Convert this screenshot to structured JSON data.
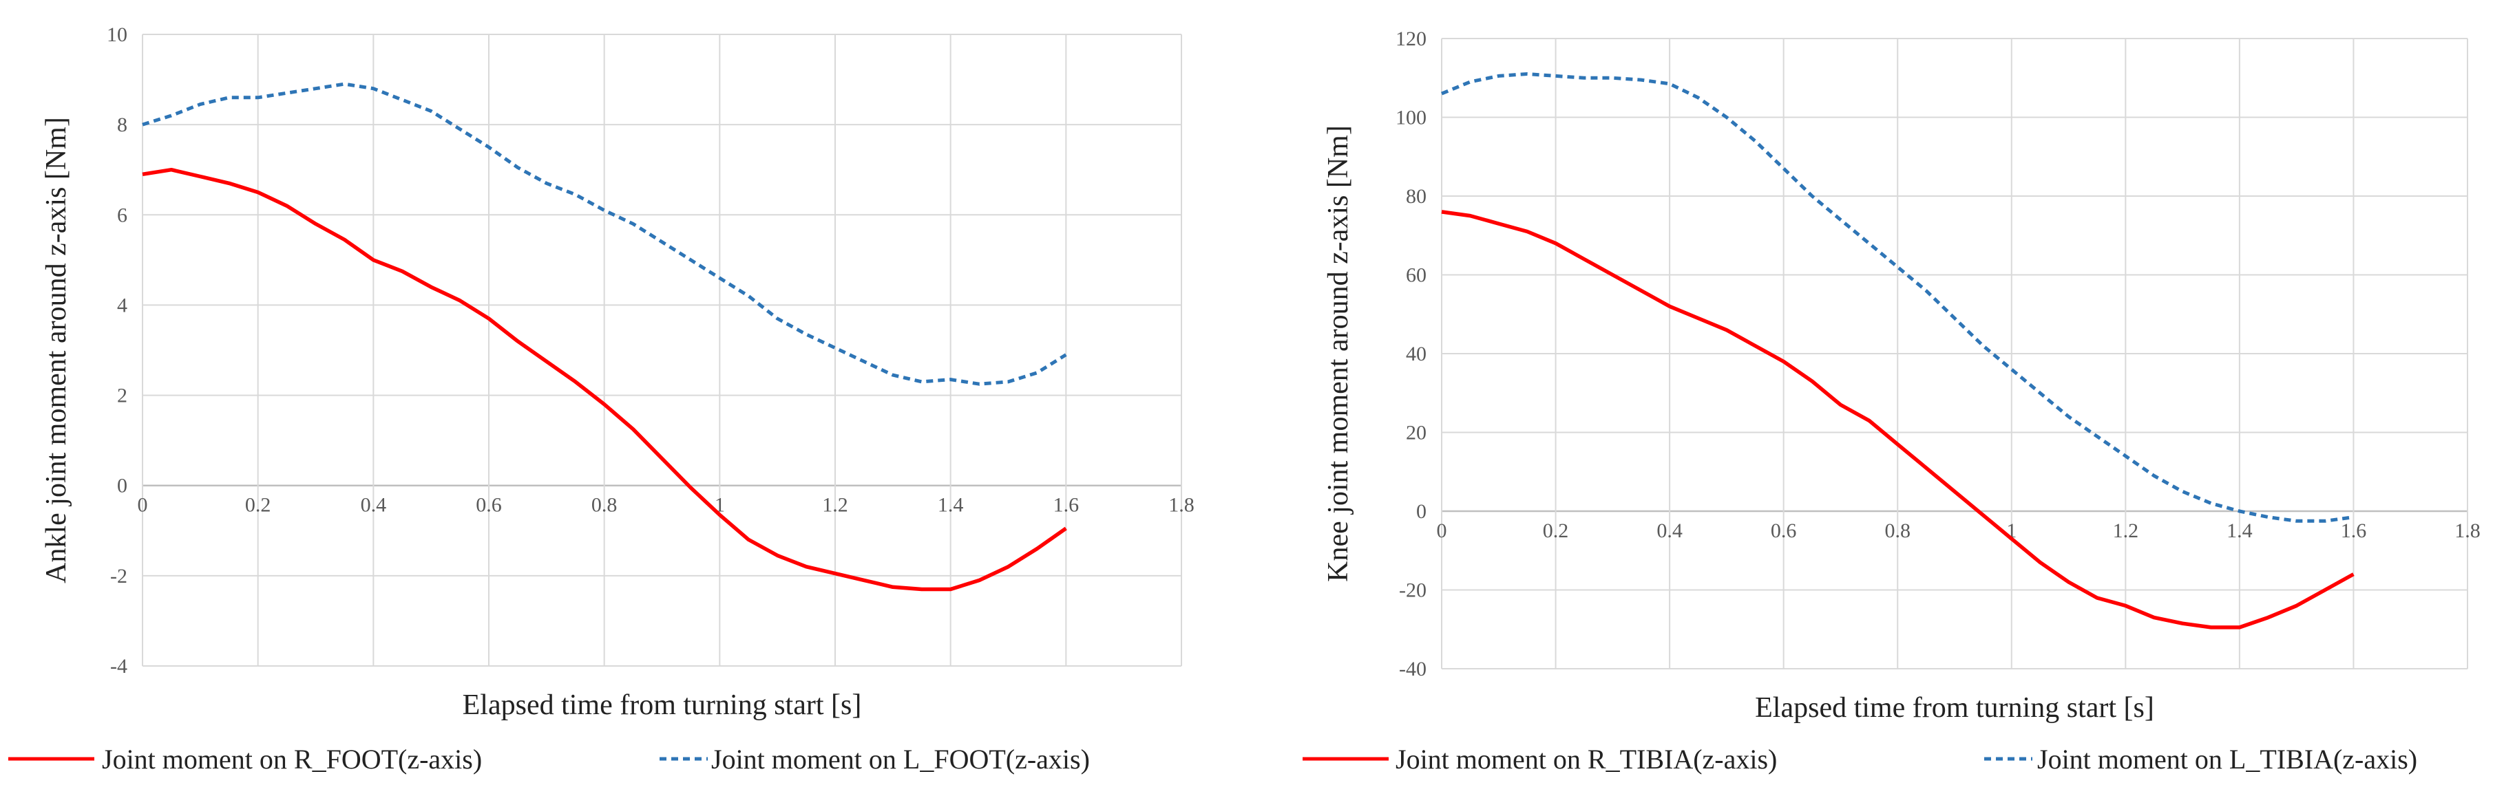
{
  "colors": {
    "solid": "#ff0000",
    "dashed": "#2e75b6",
    "grid": "#d9d9d9",
    "axis": "#bfbfbf"
  },
  "chart_data": [
    {
      "type": "line",
      "xlabel": "Elapsed time from turning start [s]",
      "ylabel": "Ankle joint moment around z-axis [Nm]",
      "xlim": [
        0,
        1.8
      ],
      "ylim": [
        -4,
        10
      ],
      "xticks": [
        "0",
        "0.2",
        "0.4",
        "0.6",
        "0.8",
        "1",
        "1.2",
        "1.4",
        "1.6",
        "1.8"
      ],
      "yticks": [
        "-4",
        "-2",
        "0",
        "2",
        "4",
        "6",
        "8",
        "10"
      ],
      "grid": true,
      "legend_position": "bottom",
      "series": [
        {
          "name": "Joint moment on R_FOOT(z-axis)",
          "style": "solid",
          "color": "#ff0000",
          "x": [
            0,
            0.05,
            0.1,
            0.15,
            0.2,
            0.25,
            0.3,
            0.35,
            0.4,
            0.45,
            0.5,
            0.55,
            0.6,
            0.65,
            0.7,
            0.75,
            0.8,
            0.85,
            0.9,
            0.95,
            1.0,
            1.05,
            1.1,
            1.15,
            1.2,
            1.25,
            1.3,
            1.35,
            1.4,
            1.45,
            1.5,
            1.55,
            1.6
          ],
          "y": [
            6.9,
            7.0,
            6.85,
            6.7,
            6.5,
            6.2,
            5.8,
            5.45,
            5.0,
            4.75,
            4.4,
            4.1,
            3.7,
            3.2,
            2.75,
            2.3,
            1.8,
            1.25,
            0.6,
            -0.05,
            -0.65,
            -1.2,
            -1.55,
            -1.8,
            -1.95,
            -2.1,
            -2.25,
            -2.3,
            -2.3,
            -2.1,
            -1.8,
            -1.4,
            -0.95
          ]
        },
        {
          "name": "Joint moment on L_FOOT(z-axis)",
          "style": "dashed",
          "color": "#2e75b6",
          "x": [
            0,
            0.05,
            0.1,
            0.15,
            0.2,
            0.25,
            0.3,
            0.35,
            0.4,
            0.45,
            0.5,
            0.55,
            0.6,
            0.65,
            0.7,
            0.75,
            0.8,
            0.85,
            0.9,
            0.95,
            1.0,
            1.05,
            1.1,
            1.15,
            1.2,
            1.25,
            1.3,
            1.35,
            1.4,
            1.45,
            1.5,
            1.55,
            1.6
          ],
          "y": [
            8.0,
            8.2,
            8.45,
            8.6,
            8.6,
            8.7,
            8.8,
            8.9,
            8.8,
            8.55,
            8.3,
            7.9,
            7.5,
            7.05,
            6.7,
            6.45,
            6.1,
            5.8,
            5.4,
            5.0,
            4.6,
            4.2,
            3.7,
            3.35,
            3.05,
            2.75,
            2.45,
            2.3,
            2.35,
            2.25,
            2.3,
            2.5,
            2.9
          ]
        }
      ]
    },
    {
      "type": "line",
      "xlabel": "Elapsed time from turning start [s]",
      "ylabel": "Knee joint moment around z-axis [Nm]",
      "xlim": [
        0,
        1.8
      ],
      "ylim": [
        -40,
        120
      ],
      "xticks": [
        "0",
        "0.2",
        "0.4",
        "0.6",
        "0.8",
        "1",
        "1.2",
        "1.4",
        "1.6",
        "1.8"
      ],
      "yticks": [
        "-40",
        "-20",
        "0",
        "20",
        "40",
        "60",
        "80",
        "100",
        "120"
      ],
      "grid": true,
      "legend_position": "bottom",
      "series": [
        {
          "name": "Joint moment on R_TIBIA(z-axis)",
          "style": "solid",
          "color": "#ff0000",
          "x": [
            0,
            0.05,
            0.1,
            0.15,
            0.2,
            0.25,
            0.3,
            0.35,
            0.4,
            0.45,
            0.5,
            0.55,
            0.6,
            0.65,
            0.7,
            0.75,
            0.8,
            0.85,
            0.9,
            0.95,
            1.0,
            1.05,
            1.1,
            1.15,
            1.2,
            1.25,
            1.3,
            1.35,
            1.4,
            1.45,
            1.5,
            1.55,
            1.6
          ],
          "y": [
            76,
            75,
            73,
            71,
            68,
            64,
            60,
            56,
            52,
            49,
            46,
            42,
            38,
            33,
            27,
            23,
            17,
            11,
            5,
            -1,
            -7,
            -13,
            -18,
            -22,
            -24,
            -27,
            -28.5,
            -29.5,
            -29.5,
            -27,
            -24,
            -20,
            -16
          ]
        },
        {
          "name": "Joint moment on L_TIBIA(z-axis)",
          "style": "dashed",
          "color": "#2e75b6",
          "x": [
            0,
            0.05,
            0.1,
            0.15,
            0.2,
            0.25,
            0.3,
            0.35,
            0.4,
            0.45,
            0.5,
            0.55,
            0.6,
            0.65,
            0.7,
            0.75,
            0.8,
            0.85,
            0.9,
            0.95,
            1.0,
            1.05,
            1.1,
            1.15,
            1.2,
            1.25,
            1.3,
            1.35,
            1.4,
            1.45,
            1.5,
            1.55,
            1.6
          ],
          "y": [
            106,
            109,
            110.5,
            111,
            110.5,
            110,
            110,
            109.5,
            108.5,
            105,
            100,
            94,
            87,
            80,
            74,
            68,
            62,
            56,
            49,
            42,
            36,
            30,
            24,
            19,
            14,
            9,
            5,
            2,
            0,
            -1.5,
            -2.5,
            -2.5,
            -1.5
          ]
        }
      ]
    }
  ]
}
